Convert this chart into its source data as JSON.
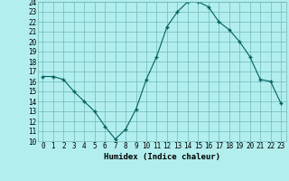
{
  "x": [
    0,
    1,
    2,
    3,
    4,
    5,
    6,
    7,
    8,
    9,
    10,
    11,
    12,
    13,
    14,
    15,
    16,
    17,
    18,
    19,
    20,
    21,
    22,
    23
  ],
  "y": [
    16.5,
    16.5,
    16.2,
    15.0,
    14.0,
    13.0,
    11.5,
    10.2,
    11.2,
    13.2,
    16.2,
    18.5,
    21.5,
    23.0,
    24.0,
    24.0,
    23.5,
    22.0,
    21.2,
    20.0,
    18.5,
    16.2,
    16.0,
    13.8
  ],
  "xlabel": "Humidex (Indice chaleur)",
  "ylim": [
    10,
    24
  ],
  "xlim": [
    -0.5,
    23.5
  ],
  "yticks": [
    10,
    11,
    12,
    13,
    14,
    15,
    16,
    17,
    18,
    19,
    20,
    21,
    22,
    23,
    24
  ],
  "xticks": [
    0,
    1,
    2,
    3,
    4,
    5,
    6,
    7,
    8,
    9,
    10,
    11,
    12,
    13,
    14,
    15,
    16,
    17,
    18,
    19,
    20,
    21,
    22,
    23
  ],
  "line_color": "#006060",
  "marker_color": "#006060",
  "bg_color": "#b2eeee",
  "grid_color": "#70b8b8",
  "label_fontsize": 6.5,
  "tick_fontsize": 5.5
}
